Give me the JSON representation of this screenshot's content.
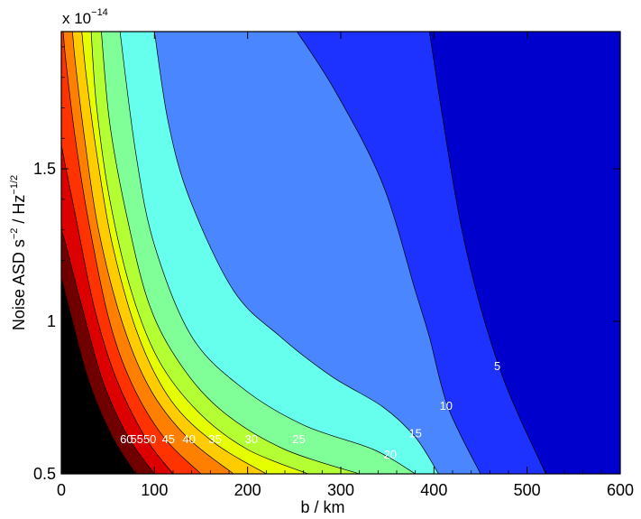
{
  "chart_data": {
    "type": "contour",
    "xlabel": "b / km",
    "ylabel_parts": {
      "base": "Noise ASD s",
      "exp1": "−2",
      "mid": " / Hz",
      "exp2": "−1/2"
    },
    "y_scale_note": {
      "base": "x 10",
      "exp": "−14"
    },
    "xlim": [
      0,
      600
    ],
    "ylim": [
      0.5,
      1.95
    ],
    "x_ticks": [
      0,
      100,
      200,
      300,
      400,
      500,
      600
    ],
    "x_tick_labels": [
      "0",
      "100",
      "200",
      "300",
      "400",
      "500",
      "600"
    ],
    "y_ticks": [
      0.5,
      1,
      1.5
    ],
    "y_tick_labels": [
      "0.5",
      "1",
      "1.5"
    ],
    "contour_levels": [
      5,
      10,
      15,
      20,
      25,
      30,
      35,
      40,
      45,
      50,
      55,
      60
    ],
    "band_colors": [
      "#0000cc",
      "#1e32ff",
      "#4a86ff",
      "#66ffee",
      "#80ff99",
      "#b3ff33",
      "#e6ff00",
      "#ffcc00",
      "#ff8000",
      "#ff3300",
      "#dd0000",
      "#700000"
    ],
    "boundaries": [
      {
        "level": 5,
        "points": [
          [
            520,
            0.5
          ],
          [
            470,
            0.85
          ],
          [
            430,
            1.3
          ],
          [
            395,
            1.95
          ]
        ]
      },
      {
        "level": 10,
        "points": [
          [
            450,
            0.5
          ],
          [
            415,
            0.72
          ],
          [
            395,
            0.95
          ],
          [
            380,
            1.1
          ],
          [
            345,
            1.45
          ],
          [
            295,
            1.75
          ],
          [
            253,
            1.95
          ]
        ]
      },
      {
        "level": 15,
        "points": [
          [
            405,
            0.5
          ],
          [
            380,
            0.62
          ],
          [
            345,
            0.72
          ],
          [
            290,
            0.82
          ],
          [
            235,
            0.95
          ],
          [
            185,
            1.1
          ],
          [
            138,
            1.4
          ],
          [
            115,
            1.65
          ],
          [
            100,
            1.95
          ]
        ]
      },
      {
        "level": 20,
        "points": [
          [
            380,
            0.5
          ],
          [
            335,
            0.58
          ],
          [
            260,
            0.66
          ],
          [
            195,
            0.78
          ],
          [
            140,
            0.95
          ],
          [
            100,
            1.25
          ],
          [
            80,
            1.55
          ],
          [
            63,
            1.95
          ]
        ]
      },
      {
        "level": 25,
        "points": [
          [
            320,
            0.5
          ],
          [
            240,
            0.58
          ],
          [
            175,
            0.7
          ],
          [
            130,
            0.85
          ],
          [
            95,
            1.05
          ],
          [
            70,
            1.35
          ],
          [
            52,
            1.65
          ],
          [
            43,
            1.95
          ]
        ]
      },
      {
        "level": 30,
        "points": [
          [
            265,
            0.5
          ],
          [
            200,
            0.58
          ],
          [
            148,
            0.7
          ],
          [
            105,
            0.87
          ],
          [
            75,
            1.1
          ],
          [
            52,
            1.4
          ],
          [
            38,
            1.7
          ],
          [
            32,
            1.95
          ]
        ]
      },
      {
        "level": 35,
        "points": [
          [
            220,
            0.5
          ],
          [
            165,
            0.6
          ],
          [
            118,
            0.74
          ],
          [
            83,
            0.95
          ],
          [
            55,
            1.25
          ],
          [
            38,
            1.55
          ],
          [
            27,
            1.8
          ],
          [
            22,
            1.95
          ]
        ]
      },
      {
        "level": 40,
        "points": [
          [
            185,
            0.5
          ],
          [
            135,
            0.62
          ],
          [
            95,
            0.78
          ],
          [
            65,
            1.0
          ],
          [
            40,
            1.3
          ],
          [
            25,
            1.6
          ],
          [
            15,
            1.85
          ],
          [
            12,
            1.95
          ]
        ]
      },
      {
        "level": 45,
        "points": [
          [
            150,
            0.5
          ],
          [
            110,
            0.62
          ],
          [
            75,
            0.8
          ],
          [
            50,
            1.02
          ],
          [
            28,
            1.35
          ],
          [
            15,
            1.6
          ],
          [
            5,
            1.85
          ],
          [
            2,
            1.95
          ]
        ]
      },
      {
        "level": 50,
        "points": [
          [
            120,
            0.5
          ],
          [
            90,
            0.62
          ],
          [
            58,
            0.82
          ],
          [
            35,
            1.05
          ],
          [
            15,
            1.35
          ],
          [
            5,
            1.5
          ],
          [
            0,
            1.58
          ]
        ]
      },
      {
        "level": 55,
        "points": [
          [
            100,
            0.5
          ],
          [
            72,
            0.62
          ],
          [
            45,
            0.8
          ],
          [
            22,
            1.05
          ],
          [
            5,
            1.25
          ],
          [
            0,
            1.3
          ]
        ]
      },
      {
        "level": 60,
        "points": [
          [
            80,
            0.5
          ],
          [
            55,
            0.62
          ],
          [
            30,
            0.8
          ],
          [
            12,
            1.0
          ],
          [
            2,
            1.12
          ],
          [
            0,
            1.14
          ]
        ]
      }
    ],
    "labels": [
      {
        "text": "5",
        "x": 468,
        "y": 0.84
      },
      {
        "text": "10",
        "x": 413,
        "y": 0.71
      },
      {
        "text": "15",
        "x": 380,
        "y": 0.62
      },
      {
        "text": "20",
        "x": 353,
        "y": 0.55
      },
      {
        "text": "25",
        "x": 255,
        "y": 0.6
      },
      {
        "text": "30",
        "x": 204,
        "y": 0.6
      },
      {
        "text": "35",
        "x": 165,
        "y": 0.6
      },
      {
        "text": "40",
        "x": 137,
        "y": 0.6
      },
      {
        "text": "45",
        "x": 115,
        "y": 0.6
      },
      {
        "text": "50",
        "x": 95,
        "y": 0.6
      },
      {
        "text": "55",
        "x": 81,
        "y": 0.6
      },
      {
        "text": "60",
        "x": 70,
        "y": 0.6
      }
    ]
  }
}
